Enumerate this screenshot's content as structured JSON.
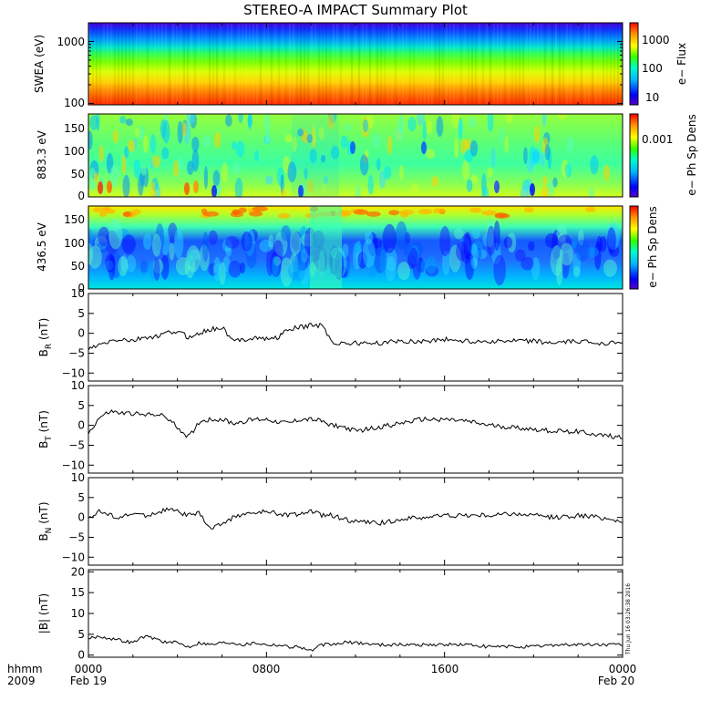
{
  "title": "STEREO-A IMPACT Summary Plot",
  "x_axis": {
    "corner_labels": [
      "hhmm",
      "2009"
    ],
    "ticks": [
      {
        "time": "0000",
        "date": "Feb 19"
      },
      {
        "time": "0800",
        "date": ""
      },
      {
        "time": "1600",
        "date": ""
      },
      {
        "time": "0000",
        "date": "Feb 20"
      }
    ]
  },
  "stamp": "Thu Jun 16 03:26:38 2016",
  "colors": {
    "line": "#000000",
    "background": "#ffffff"
  },
  "colormap": "rainbow (violet-blue-cyan-green-yellow-orange-red)",
  "chart_data": [
    {
      "type": "heatmap",
      "id": "swea",
      "ylabel": "SWEA (eV)",
      "y_scale": "log",
      "ylim": [
        95,
        2000
      ],
      "yticks": [
        "100",
        "1000"
      ],
      "colorbar": {
        "label": "e− Flux",
        "ticks": [
          "10",
          "100",
          "1000"
        ],
        "scale": "log"
      },
      "description_values": {
        "energy_eV": [
          100,
          200,
          300,
          500,
          700,
          1000,
          1500,
          2000
        ],
        "relative_level": [
          0.97,
          0.85,
          0.72,
          0.55,
          0.45,
          0.33,
          0.18,
          0.08
        ]
      }
    },
    {
      "type": "heatmap",
      "id": "pad883",
      "ylabel": "883.3 eV",
      "ylim": [
        0,
        180
      ],
      "yticks": [
        "0",
        "50",
        "100",
        "150"
      ],
      "colorbar": {
        "label": "e− Ph Sp Dens",
        "ticks": [
          "0.001"
        ]
      }
    },
    {
      "type": "heatmap",
      "id": "pad436",
      "ylabel": "436.5 eV",
      "ylim": [
        0,
        180
      ],
      "yticks": [
        "0",
        "50",
        "100",
        "150"
      ],
      "colorbar": {
        "label": "e− Ph Sp Dens",
        "ticks": []
      }
    },
    {
      "type": "line",
      "id": "br",
      "ylabel": "BR (nT)",
      "ylabel_main": "B",
      "ylabel_sub": "R",
      "ylabel_unit": "(nT)",
      "ylim": [
        -12,
        10
      ],
      "yticks": [
        "−10",
        "−5",
        "0",
        "5",
        "10"
      ],
      "x_hours": [
        0,
        0.5,
        1,
        1.5,
        2,
        2.5,
        3,
        3.5,
        4,
        4.5,
        5,
        5.5,
        6,
        6.5,
        7,
        7.5,
        8,
        8.5,
        9,
        9.5,
        10,
        10.5,
        11,
        11.5,
        12,
        13,
        14,
        15,
        16,
        17,
        18,
        19,
        20,
        21,
        22,
        23,
        24
      ],
      "values": [
        -4,
        -3,
        -2,
        -1.5,
        -2,
        -1,
        -1,
        0,
        0.5,
        -1,
        0,
        1,
        1.5,
        -2,
        -1.5,
        -1,
        -1.5,
        -1,
        1,
        1.5,
        2,
        2,
        -2.5,
        -2.5,
        -2.5,
        -2.5,
        -2,
        -2,
        -1.5,
        -2,
        -2,
        -2,
        -2,
        -2.5,
        -2,
        -2.5,
        -2
      ]
    },
    {
      "type": "line",
      "id": "bt",
      "ylabel": "BT (nT)",
      "ylabel_main": "B",
      "ylabel_sub": "T",
      "ylabel_unit": "(nT)",
      "ylim": [
        -12,
        10
      ],
      "yticks": [
        "−10",
        "−5",
        "0",
        "5",
        "10"
      ],
      "x_hours": [
        0,
        0.5,
        1,
        1.5,
        2,
        2.5,
        3,
        3.5,
        4,
        4.5,
        5,
        5.5,
        6,
        6.5,
        7,
        7.5,
        8,
        8.5,
        9,
        9.5,
        10,
        10.5,
        11,
        11.5,
        12,
        13,
        14,
        15,
        16,
        17,
        18,
        19,
        20,
        21,
        22,
        23,
        24
      ],
      "values": [
        -2,
        2,
        3.5,
        3,
        3,
        2.5,
        3,
        2,
        -0.5,
        -3,
        1,
        1.5,
        1.5,
        0.5,
        1,
        1.5,
        1.5,
        1,
        0.5,
        1.5,
        1.5,
        1,
        0,
        -0.5,
        -1.5,
        -0.5,
        0.5,
        1.5,
        1.5,
        1,
        0,
        -0.5,
        -1,
        -1.5,
        -1.5,
        -2.5,
        -3
      ]
    },
    {
      "type": "line",
      "id": "bn",
      "ylabel": "BN (nT)",
      "ylabel_main": "B",
      "ylabel_sub": "N",
      "ylabel_unit": "(nT)",
      "ylim": [
        -12,
        10
      ],
      "yticks": [
        "−10",
        "−5",
        "0",
        "5",
        "10"
      ],
      "x_hours": [
        0,
        0.5,
        1,
        1.5,
        2,
        2.5,
        3,
        3.5,
        4,
        4.5,
        5,
        5.5,
        6,
        6.5,
        7,
        7.5,
        8,
        8.5,
        9,
        9.5,
        10,
        10.5,
        11,
        11.5,
        12,
        13,
        14,
        15,
        16,
        17,
        18,
        19,
        20,
        21,
        22,
        23,
        24
      ],
      "values": [
        0,
        1.5,
        0.5,
        0,
        1,
        0.5,
        1,
        2,
        1.5,
        0.5,
        1,
        -3,
        -1.5,
        0,
        1,
        1,
        1.5,
        1,
        0.5,
        1,
        1.5,
        0.5,
        0.5,
        -0.5,
        -1,
        -1.5,
        -0.5,
        0,
        0.5,
        0.5,
        0.5,
        1,
        0.5,
        0,
        0.5,
        0,
        -1
      ]
    },
    {
      "type": "line",
      "id": "bmag",
      "ylabel": "|B| (nT)",
      "ylim": [
        -0.5,
        20.5
      ],
      "yticks": [
        "0",
        "5",
        "10",
        "15",
        "20"
      ],
      "x_hours": [
        0,
        0.5,
        1,
        1.5,
        2,
        2.5,
        3,
        3.5,
        4,
        4.5,
        5,
        5.5,
        6,
        6.5,
        7,
        7.5,
        8,
        8.5,
        9,
        9.5,
        10,
        10.5,
        11,
        11.5,
        12,
        13,
        14,
        15,
        16,
        17,
        18,
        19,
        20,
        21,
        22,
        23,
        24
      ],
      "values": [
        4,
        4.5,
        4,
        3.5,
        3,
        4.5,
        4,
        3,
        3,
        2,
        3,
        2.5,
        3,
        3,
        2.5,
        3,
        2.5,
        2.5,
        2,
        2,
        1,
        2.5,
        2.5,
        3,
        3,
        2.5,
        2.5,
        2.5,
        2.5,
        2.5,
        2,
        2,
        2,
        2.5,
        2.5,
        2.5,
        2.5
      ]
    }
  ]
}
